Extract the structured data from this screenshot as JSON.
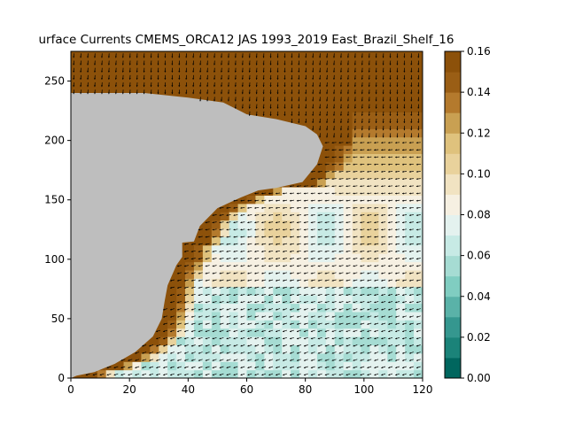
{
  "chart_data": {
    "type": "heatmap",
    "title": "urface Currents CMEMS_ORCA12 JAS 1993_2019 East_Brazil_Shelf_16",
    "xlabel": "",
    "ylabel": "",
    "xlim": [
      0,
      120
    ],
    "ylim": [
      0,
      275
    ],
    "x_ticks": [
      "0",
      "20",
      "40",
      "60",
      "80",
      "100",
      "120"
    ],
    "y_ticks": [
      "0",
      "50",
      "100",
      "150",
      "200",
      "250"
    ],
    "colorbar": {
      "vmin": 0.0,
      "vmax": 0.16,
      "ticks": [
        "0.00",
        "0.02",
        "0.04",
        "0.06",
        "0.08",
        "0.10",
        "0.12",
        "0.14",
        "0.16"
      ],
      "levels": 16,
      "colormap": "BrBG_r"
    },
    "land_color": "#bebebe",
    "land_boundary": [
      [
        0,
        240
      ],
      [
        12,
        240
      ],
      [
        25,
        240
      ],
      [
        40,
        236
      ],
      [
        52,
        232
      ],
      [
        60,
        222
      ],
      [
        70,
        218
      ],
      [
        80,
        212
      ],
      [
        84,
        205
      ],
      [
        86,
        195
      ],
      [
        84,
        180
      ],
      [
        79,
        165
      ],
      [
        70,
        160
      ],
      [
        64,
        158
      ],
      [
        58,
        152
      ],
      [
        50,
        143
      ],
      [
        44,
        128
      ],
      [
        42,
        115
      ],
      [
        38,
        114
      ],
      [
        38,
        102
      ],
      [
        36,
        95
      ],
      [
        33,
        78
      ],
      [
        32,
        65
      ],
      [
        31,
        50
      ],
      [
        28,
        35
      ],
      [
        22,
        22
      ],
      [
        15,
        12
      ],
      [
        8,
        5
      ],
      [
        2,
        2
      ],
      [
        0,
        0
      ]
    ],
    "coastal_band": {
      "description": "strong (0.12-0.16) currents along the shelf break",
      "value_near_coast": 0.155,
      "value_offshore_south": 0.05,
      "value_offshore_mid": 0.085,
      "value_offshore_north": 0.13
    },
    "vector_field": {
      "spacing_x": 2.4,
      "spacing_y": 6.1,
      "direction_deg_south": 200,
      "direction_deg_north": 100,
      "arrow_color": "#000000"
    }
  }
}
